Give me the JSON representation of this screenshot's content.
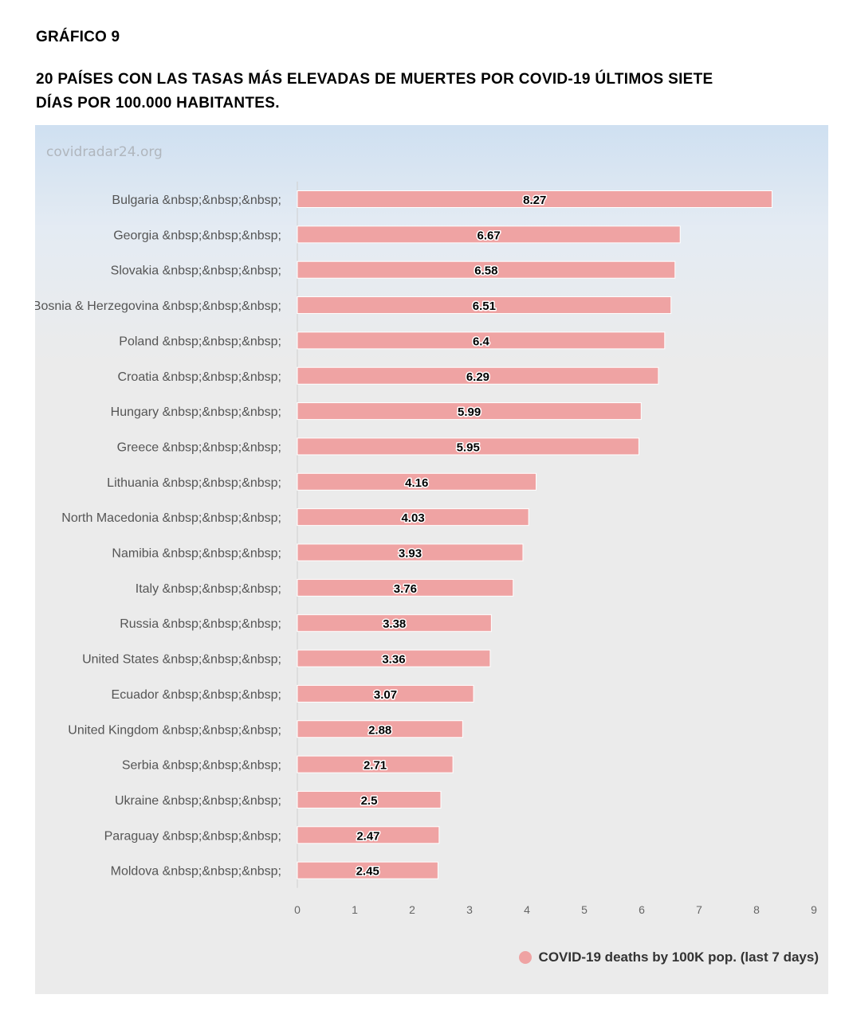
{
  "figure_label": "GRÁFICO 9",
  "figure_title": "20 PAÍSES CON LAS TASAS MÁS ELEVADAS DE MUERTES POR COVID-19 ÚLTIMOS SIETE DÍAS POR 100.000 HABITANTES.",
  "watermark": "covidradar24.org",
  "colors": {
    "bar": "#efa3a3",
    "bar_outline": "#ffffff"
  },
  "chart_data": {
    "type": "bar",
    "orientation": "horizontal",
    "categories": [
      "Bulgaria &nbsp;&nbsp;&nbsp;",
      "Georgia &nbsp;&nbsp;&nbsp;",
      "Slovakia &nbsp;&nbsp;&nbsp;",
      "Bosnia & Herzegovina &nbsp;&nbsp;&nbsp;",
      "Poland &nbsp;&nbsp;&nbsp;",
      "Croatia &nbsp;&nbsp;&nbsp;",
      "Hungary &nbsp;&nbsp;&nbsp;",
      "Greece &nbsp;&nbsp;&nbsp;",
      "Lithuania &nbsp;&nbsp;&nbsp;",
      "North Macedonia &nbsp;&nbsp;&nbsp;",
      "Namibia &nbsp;&nbsp;&nbsp;",
      "Italy &nbsp;&nbsp;&nbsp;",
      "Russia &nbsp;&nbsp;&nbsp;",
      "United States &nbsp;&nbsp;&nbsp;",
      "Ecuador &nbsp;&nbsp;&nbsp;",
      "United Kingdom &nbsp;&nbsp;&nbsp;",
      "Serbia &nbsp;&nbsp;&nbsp;",
      "Ukraine &nbsp;&nbsp;&nbsp;",
      "Paraguay &nbsp;&nbsp;&nbsp;",
      "Moldova &nbsp;&nbsp;&nbsp;"
    ],
    "series": [
      {
        "name": "COVID-19 deaths by 100K pop. (last 7 days)",
        "values": [
          8.27,
          6.67,
          6.58,
          6.51,
          6.4,
          6.29,
          5.99,
          5.95,
          4.16,
          4.03,
          3.93,
          3.76,
          3.38,
          3.36,
          3.07,
          2.88,
          2.71,
          2.5,
          2.47,
          2.45
        ]
      }
    ],
    "xlim": [
      0,
      9
    ],
    "x_ticks": [
      "0",
      "1",
      "2",
      "3",
      "4",
      "5",
      "6",
      "7",
      "8",
      "9"
    ],
    "grid": false,
    "legend_position": "bottom-right"
  }
}
